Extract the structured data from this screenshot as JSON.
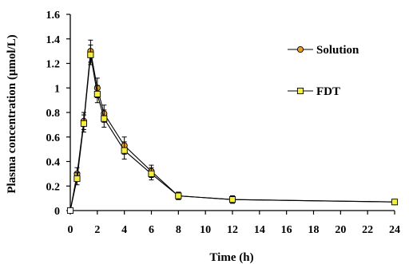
{
  "chart_data": {
    "type": "line",
    "xlabel": "Time (h)",
    "ylabel": "Plasma concentration (μmol/L)",
    "xlim": [
      0,
      24
    ],
    "ylim": [
      0,
      1.6
    ],
    "x_ticks": [
      "0",
      "2",
      "4",
      "6",
      "8",
      "10",
      "12",
      "14",
      "16",
      "18",
      "20",
      "22",
      "24"
    ],
    "y_ticks": [
      "0",
      "0.2",
      "0.4",
      "0.6",
      "0.8",
      "1",
      "1.2",
      "1.4",
      "1.6"
    ],
    "grid": false,
    "legend_position": "top-right",
    "series": [
      {
        "name": "Solution",
        "marker": "circle",
        "color": "#e8a020",
        "x": [
          0,
          0.5,
          1,
          1.5,
          2,
          2.5,
          4,
          6,
          8,
          12,
          24
        ],
        "y": [
          0,
          0.3,
          0.73,
          1.3,
          1.0,
          0.79,
          0.53,
          0.32,
          0.12,
          0.09,
          0.07
        ],
        "err": [
          0,
          0.05,
          0.07,
          0.09,
          0.08,
          0.07,
          0.07,
          0.05,
          0.03,
          0.03,
          0.02
        ]
      },
      {
        "name": "FDT",
        "marker": "square",
        "color": "#f4ef3c",
        "x": [
          0,
          0.5,
          1,
          1.5,
          2,
          2.5,
          4,
          6,
          8,
          12,
          24
        ],
        "y": [
          0,
          0.26,
          0.71,
          1.27,
          0.95,
          0.75,
          0.49,
          0.3,
          0.12,
          0.09,
          0.07
        ],
        "err": [
          0,
          0.05,
          0.07,
          0.08,
          0.07,
          0.07,
          0.07,
          0.05,
          0.03,
          0.03,
          0.02
        ]
      }
    ]
  }
}
